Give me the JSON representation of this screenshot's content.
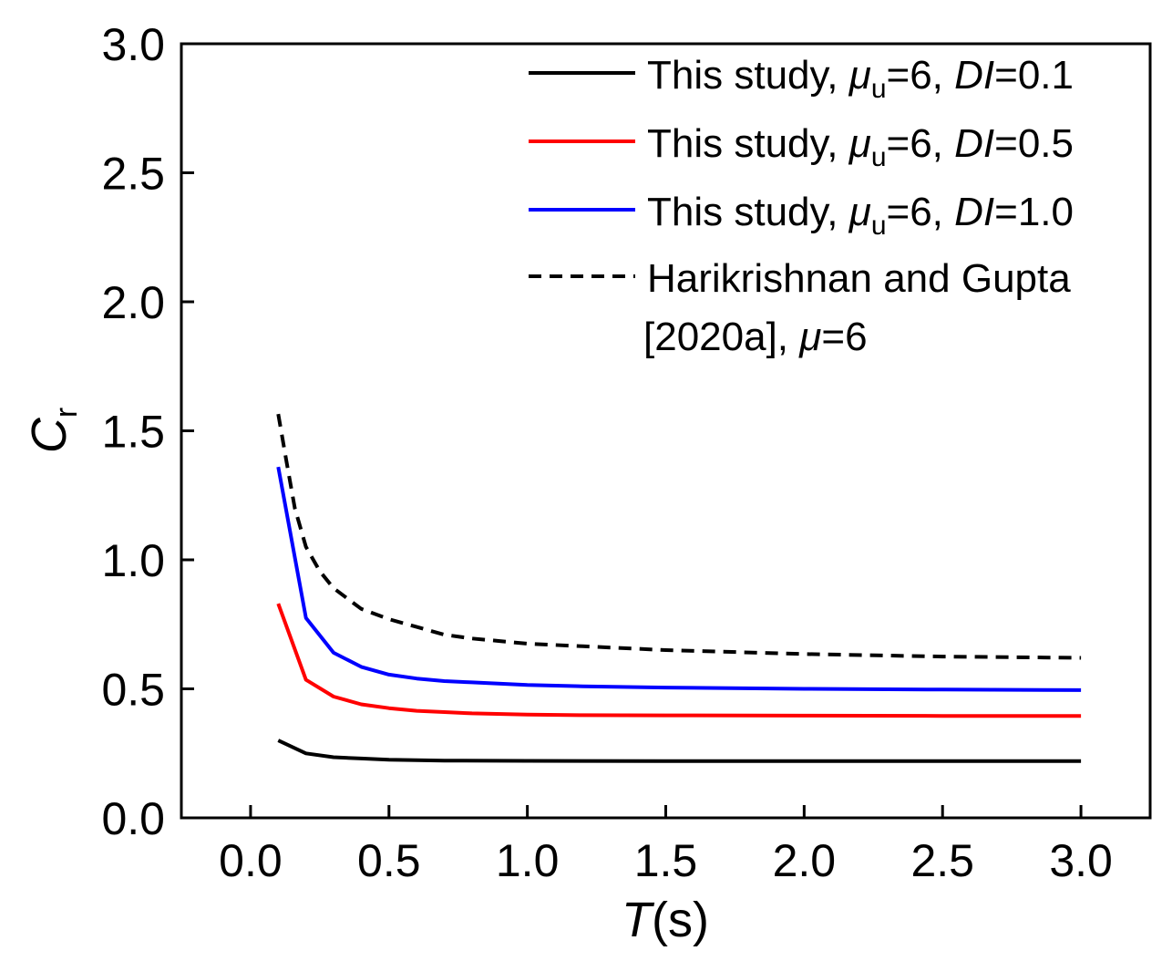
{
  "chart_data": {
    "type": "line",
    "xlabel": "T(s)",
    "ylabel": "Cr",
    "xlim": [
      -0.25,
      3.25
    ],
    "ylim": [
      0,
      3.0
    ],
    "xticks": [
      "0.0",
      "0.5",
      "1.0",
      "1.5",
      "2.0",
      "2.5",
      "3.0"
    ],
    "yticks": [
      "0.0",
      "0.5",
      "1.0",
      "1.5",
      "2.0",
      "2.5",
      "3.0"
    ],
    "grid": false,
    "legend_placement": "top-right",
    "series": [
      {
        "name": "This study, μu=6, DI=0.1",
        "color": "#000000",
        "dash": false,
        "x": [
          0.1,
          0.2,
          0.3,
          0.4,
          0.5,
          0.7,
          1.0,
          1.5,
          2.0,
          2.5,
          3.0
        ],
        "y": [
          0.3,
          0.25,
          0.235,
          0.23,
          0.225,
          0.222,
          0.221,
          0.22,
          0.22,
          0.22,
          0.22
        ]
      },
      {
        "name": "This study, μu=6, DI=0.5",
        "color": "#ff0000",
        "dash": false,
        "x": [
          0.1,
          0.2,
          0.3,
          0.4,
          0.5,
          0.6,
          0.7,
          0.8,
          1.0,
          1.2,
          1.5,
          2.0,
          2.5,
          3.0
        ],
        "y": [
          0.83,
          0.535,
          0.47,
          0.44,
          0.425,
          0.415,
          0.41,
          0.405,
          0.4,
          0.398,
          0.397,
          0.396,
          0.395,
          0.395
        ]
      },
      {
        "name": "This study, μu=6, DI=1.0",
        "color": "#0000ff",
        "dash": false,
        "x": [
          0.1,
          0.2,
          0.3,
          0.4,
          0.5,
          0.6,
          0.7,
          0.8,
          1.0,
          1.2,
          1.5,
          2.0,
          2.5,
          3.0
        ],
        "y": [
          1.36,
          0.775,
          0.64,
          0.585,
          0.555,
          0.54,
          0.53,
          0.525,
          0.515,
          0.51,
          0.505,
          0.5,
          0.497,
          0.495
        ]
      },
      {
        "name": "Harikrishnan and Gupta [2020a], μ=6",
        "color": "#000000",
        "dash": true,
        "x": [
          0.1,
          0.13,
          0.16,
          0.2,
          0.25,
          0.3,
          0.4,
          0.5,
          0.6,
          0.7,
          0.8,
          0.9,
          1.0,
          1.2,
          1.5,
          2.0,
          2.5,
          3.0
        ],
        "y": [
          1.565,
          1.38,
          1.2,
          1.05,
          0.956,
          0.89,
          0.81,
          0.77,
          0.74,
          0.71,
          0.695,
          0.685,
          0.675,
          0.665,
          0.65,
          0.635,
          0.625,
          0.62
        ]
      }
    ]
  },
  "legend": {
    "items": [
      {
        "prefix": "This study, ",
        "mu": "μ",
        "sub": "u",
        "mid": "=6, ",
        "di": "DI",
        "tail": "=0.1"
      },
      {
        "prefix": "This study, ",
        "mu": "μ",
        "sub": "u",
        "mid": "=6, ",
        "di": "DI",
        "tail": "=0.5"
      },
      {
        "prefix": "This study, ",
        "mu": "μ",
        "sub": "u",
        "mid": "=6, ",
        "di": "DI",
        "tail": "=1.0"
      }
    ],
    "ref_line1": "Harikrishnan and Gupta",
    "ref_line2a": "[2020a], ",
    "ref_mu": "μ",
    "ref_line2b": "=6"
  },
  "axis": {
    "x_var": "T",
    "x_unit": "(s)",
    "y_var": "C",
    "y_sub": "r"
  }
}
